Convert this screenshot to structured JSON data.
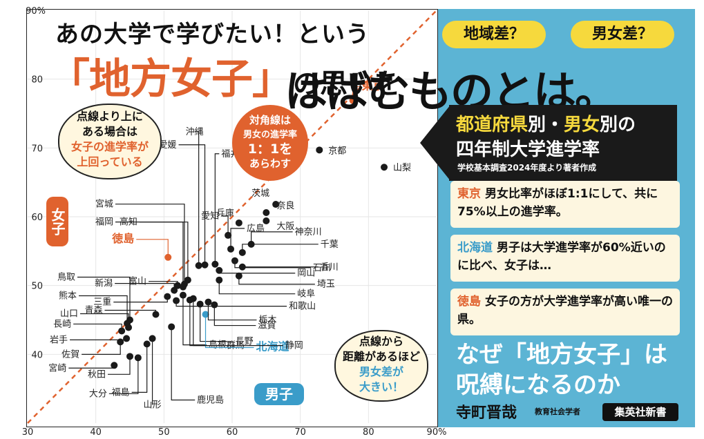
{
  "headline": {
    "line1": "あの大学で学びたい！という",
    "line2_quoted": "「地方女子」",
    "line2_rest": "の思いを",
    "line2_big": "はばむものとは。"
  },
  "notes": {
    "above_line": [
      "点線より上に",
      "ある場合は",
      "女子の進学率が",
      "上回っている"
    ],
    "diagonal": [
      "対角線は",
      "男女の進学率",
      "1：1を",
      "あらわす"
    ],
    "distance": [
      "点線から",
      "距離があるほど",
      "男女差が",
      "大きい！"
    ]
  },
  "axis_tags": {
    "female": "女子",
    "male": "男子"
  },
  "panel": {
    "pill_region": "地域差？",
    "pill_gender": "男女差？",
    "banner_title_1a": "都道府県",
    "banner_title_1b": "別・",
    "banner_title_1c": "男女",
    "banner_title_1d": "別の",
    "banner_title_2": "四年制大学進学率",
    "banner_source": "学校基本調査2024年度より著者作成",
    "cards": [
      {
        "key": "東京",
        "text": "男女比率がほぼ1:1にして、共に75%以上の進学率。"
      },
      {
        "key": "北海道",
        "text": "男子は大学進学率が60%近いのに比べ、女子は…"
      },
      {
        "key": "徳島",
        "text": "女子の方が大学進学率が高い唯一の県。"
      }
    ],
    "book_title_1": "なぜ「地方女子」は",
    "book_title_2": "呪縛になるのか",
    "author": "寺町晋哉",
    "author_role": "教育社会学者",
    "publisher": "集英社新書"
  },
  "chart_data": {
    "type": "scatter",
    "title": "都道府県別・男女別の四年制大学進学率",
    "xlabel": "男子",
    "ylabel": "女子",
    "xlim": [
      30,
      90
    ],
    "ylim": [
      30,
      90
    ],
    "x_ticks": [
      "30",
      "40",
      "50",
      "60",
      "70",
      "80",
      "90%"
    ],
    "y_ticks": [
      "40",
      "50",
      "60",
      "70",
      "80",
      "90%"
    ],
    "diagonal": "1:1",
    "highlight_colors": {
      "東京": "#e0622e",
      "徳島": "#e0622e",
      "北海道": "#3a9cc9"
    },
    "points": [
      {
        "name": "東京",
        "x": 77.7,
        "y": 76.9
      },
      {
        "name": "京都",
        "x": 72.8,
        "y": 69.7
      },
      {
        "name": "山梨",
        "x": 82.3,
        "y": 67.2
      },
      {
        "name": "茨城",
        "x": 66.4,
        "y": 61.8
      },
      {
        "name": "奈良",
        "x": 65.0,
        "y": 60.6
      },
      {
        "name": "大阪",
        "x": 65.0,
        "y": 59.4
      },
      {
        "name": "兵庫",
        "x": 61.0,
        "y": 59.1
      },
      {
        "name": "愛知",
        "x": 59.4,
        "y": 57.3
      },
      {
        "name": "広島",
        "x": 59.8,
        "y": 55.3
      },
      {
        "name": "神奈川",
        "x": 62.8,
        "y": 56.0
      },
      {
        "name": "千葉",
        "x": 61.5,
        "y": 54.8
      },
      {
        "name": "石川",
        "x": 60.4,
        "y": 53.6
      },
      {
        "name": "香川",
        "x": 61.5,
        "y": 52.7
      },
      {
        "name": "埼玉",
        "x": 61.0,
        "y": 51.4
      },
      {
        "name": "岡山",
        "x": 58.1,
        "y": 52.2
      },
      {
        "name": "岐阜",
        "x": 58.1,
        "y": 50.8
      },
      {
        "name": "沖縄",
        "x": 55.1,
        "y": 52.9
      },
      {
        "name": "愛媛",
        "x": 56.0,
        "y": 53.0
      },
      {
        "name": "福井",
        "x": 57.5,
        "y": 53.1
      },
      {
        "name": "宮城",
        "x": 53.0,
        "y": 50.2
      },
      {
        "name": "福岡",
        "x": 52.8,
        "y": 49.8
      },
      {
        "name": "高知",
        "x": 53.5,
        "y": 50.8
      },
      {
        "name": "徳島",
        "x": 50.6,
        "y": 54.1
      },
      {
        "name": "富山",
        "x": 52.0,
        "y": 50.0
      },
      {
        "name": "新潟",
        "x": 51.5,
        "y": 49.3
      },
      {
        "name": "三重",
        "x": 50.5,
        "y": 48.4
      },
      {
        "name": "青森",
        "x": 48.8,
        "y": 45.8
      },
      {
        "name": "鳥取",
        "x": 45.0,
        "y": 45.0
      },
      {
        "name": "熊本",
        "x": 44.6,
        "y": 44.5
      },
      {
        "name": "山口",
        "x": 44.8,
        "y": 43.9
      },
      {
        "name": "長崎",
        "x": 43.8,
        "y": 43.4
      },
      {
        "name": "岩手",
        "x": 44.5,
        "y": 42.3
      },
      {
        "name": "佐賀",
        "x": 43.6,
        "y": 41.8
      },
      {
        "name": "宮崎",
        "x": 42.7,
        "y": 38.4
      },
      {
        "name": "秋田",
        "x": 45.0,
        "y": 39.7
      },
      {
        "name": "大分",
        "x": 46.2,
        "y": 39.5
      },
      {
        "name": "福島",
        "x": 47.5,
        "y": 41.5
      },
      {
        "name": "山形",
        "x": 48.3,
        "y": 42.3
      },
      {
        "name": "鹿児島",
        "x": 51.1,
        "y": 44.0
      },
      {
        "name": "島根",
        "x": 52.8,
        "y": 48.6
      },
      {
        "name": "群馬",
        "x": 53.8,
        "y": 47.9
      },
      {
        "name": "長野",
        "x": 55.3,
        "y": 47.3
      },
      {
        "name": "北海道",
        "x": 56.1,
        "y": 45.8
      },
      {
        "name": "滋賀",
        "x": 57.4,
        "y": 47.2
      },
      {
        "name": "静岡",
        "x": 54.3,
        "y": 48.1
      },
      {
        "name": "栃木",
        "x": 56.5,
        "y": 47.6
      },
      {
        "name": "和歌山",
        "x": 51.8,
        "y": 47.8
      }
    ]
  }
}
